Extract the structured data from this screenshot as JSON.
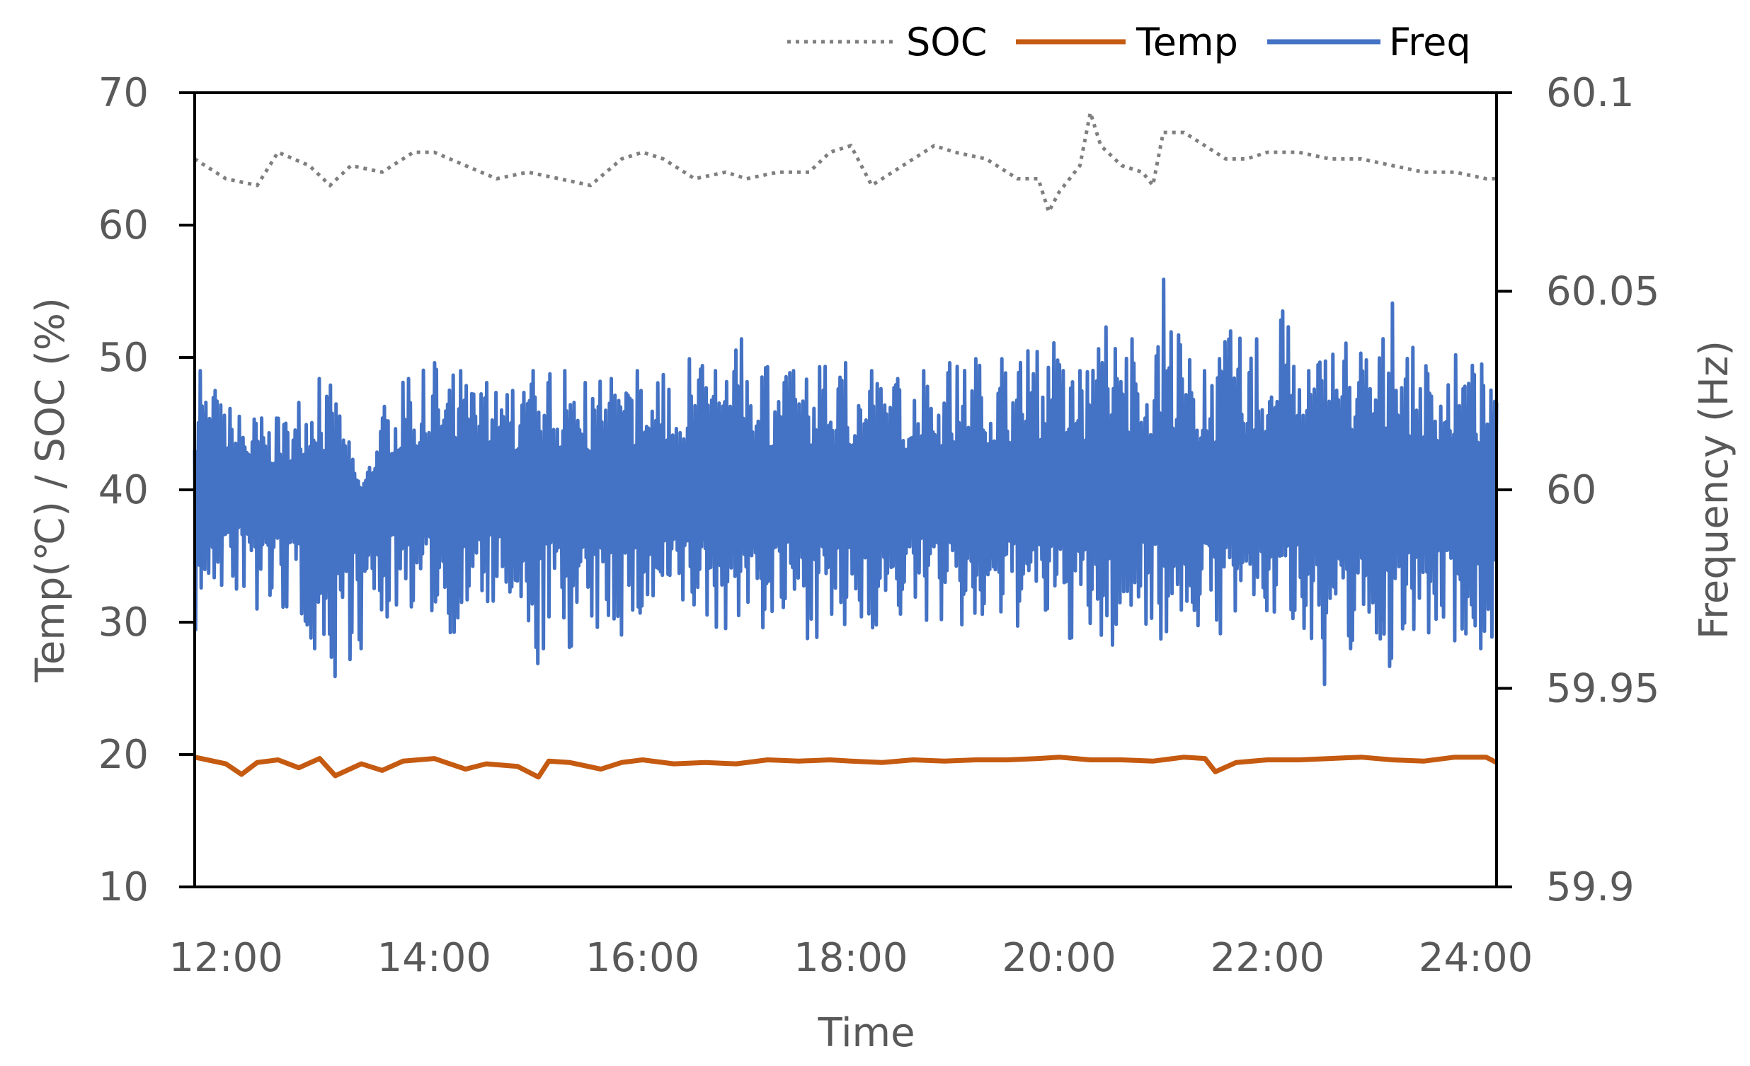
{
  "chart_data": {
    "type": "line",
    "xlabel": "Time",
    "ylabel_left": "Temp(℃) / SOC (%)",
    "ylabel_right": "Frequency (Hz)",
    "x_ticks": [
      "12:00",
      "14:00",
      "16:00",
      "18:00",
      "20:00",
      "22:00",
      "24:00"
    ],
    "x_range_hours": [
      11.7,
      24.2
    ],
    "y_left_ticks": [
      "70",
      "60",
      "50",
      "40",
      "30",
      "20",
      "10"
    ],
    "y_left_range": [
      10,
      70
    ],
    "y_right_ticks": [
      "60.1",
      "60.05",
      "60",
      "59.95",
      "59.9"
    ],
    "y_right_range": [
      59.9,
      60.1
    ],
    "legend": {
      "position": "top-right",
      "entries": [
        "SOC",
        "Temp",
        "Freq"
      ]
    },
    "grid": false,
    "series": [
      {
        "name": "SOC",
        "axis": "left",
        "style": "dotted",
        "color": "#7f7f7f",
        "x_hours": [
          11.7,
          12.0,
          12.3,
          12.5,
          12.8,
          13.0,
          13.2,
          13.5,
          13.8,
          14.0,
          14.3,
          14.6,
          14.9,
          15.2,
          15.5,
          15.8,
          16.0,
          16.2,
          16.5,
          16.8,
          17.0,
          17.3,
          17.6,
          17.8,
          18.0,
          18.2,
          18.5,
          18.8,
          19.0,
          19.3,
          19.6,
          19.8,
          19.9,
          20.0,
          20.2,
          20.3,
          20.4,
          20.6,
          20.8,
          20.9,
          21.0,
          21.2,
          21.4,
          21.6,
          21.8,
          22.0,
          22.3,
          22.6,
          22.9,
          23.2,
          23.5,
          23.8,
          24.1,
          24.2
        ],
        "values": [
          65,
          63.5,
          63,
          65.5,
          64.5,
          63,
          64.5,
          64,
          65.5,
          65.5,
          64.5,
          63.5,
          64,
          63.5,
          63,
          65,
          65.5,
          65,
          63.5,
          64,
          63.5,
          64,
          64,
          65.5,
          66,
          63,
          64.5,
          66,
          65.5,
          65,
          63.5,
          63.5,
          61,
          62.5,
          64.5,
          68.5,
          66,
          64.5,
          64,
          63,
          67,
          67,
          66,
          65,
          65,
          65.5,
          65.5,
          65,
          65,
          64.5,
          64,
          64,
          63.5,
          63.5
        ]
      },
      {
        "name": "Temp",
        "axis": "left",
        "style": "solid",
        "color": "#c55a11",
        "x_hours": [
          11.7,
          12.0,
          12.15,
          12.3,
          12.5,
          12.7,
          12.9,
          13.05,
          13.3,
          13.5,
          13.7,
          14.0,
          14.3,
          14.5,
          14.8,
          15.0,
          15.1,
          15.3,
          15.6,
          15.8,
          16.0,
          16.3,
          16.6,
          16.9,
          17.2,
          17.5,
          17.8,
          18.0,
          18.3,
          18.6,
          18.9,
          19.2,
          19.5,
          19.8,
          20.0,
          20.3,
          20.6,
          20.9,
          21.2,
          21.4,
          21.5,
          21.7,
          22.0,
          22.3,
          22.6,
          22.9,
          23.2,
          23.5,
          23.8,
          24.1,
          24.2
        ],
        "values": [
          19.8,
          19.3,
          18.5,
          19.4,
          19.6,
          19,
          19.7,
          18.4,
          19.3,
          18.8,
          19.5,
          19.7,
          18.9,
          19.3,
          19.1,
          18.3,
          19.5,
          19.4,
          18.9,
          19.4,
          19.6,
          19.3,
          19.4,
          19.3,
          19.6,
          19.5,
          19.6,
          19.5,
          19.4,
          19.6,
          19.5,
          19.6,
          19.6,
          19.7,
          19.8,
          19.6,
          19.6,
          19.5,
          19.8,
          19.7,
          18.7,
          19.4,
          19.6,
          19.6,
          19.7,
          19.8,
          19.6,
          19.5,
          19.8,
          19.8,
          19.4
        ]
      },
      {
        "name": "Freq",
        "axis": "right",
        "style": "solid",
        "color": "#4472c4",
        "x_hours": [
          11.7,
          11.75,
          11.9,
          12.1,
          12.3,
          12.5,
          12.7,
          12.85,
          12.9,
          13.05,
          13.3,
          13.55,
          13.75,
          14.0,
          14.25,
          14.5,
          14.75,
          14.95,
          15.05,
          15.1,
          15.25,
          15.45,
          15.7,
          15.95,
          16.2,
          16.45,
          16.7,
          16.95,
          17.2,
          17.45,
          17.7,
          17.95,
          18.2,
          18.45,
          18.7,
          18.95,
          19.2,
          19.45,
          19.7,
          19.95,
          20.2,
          20.45,
          20.7,
          20.95,
          21.0,
          21.15,
          21.4,
          21.65,
          21.9,
          22.15,
          22.4,
          22.55,
          22.8,
          23.05,
          23.2,
          23.3,
          23.55,
          23.8,
          24.05,
          24.2
        ],
        "peaks_hz": [
          60.01,
          60.03,
          60.025,
          60.021,
          60.02,
          60.018,
          60.022,
          60.032,
          60.028,
          60.026,
          60.0,
          60.025,
          60.028,
          60.032,
          60.03,
          60.027,
          60.025,
          60.03,
          60.018,
          60.031,
          60.03,
          60.027,
          60.028,
          60.03,
          60.029,
          60.033,
          60.03,
          60.038,
          60.031,
          60.03,
          60.031,
          60.032,
          60.03,
          60.028,
          60.03,
          60.032,
          60.033,
          60.033,
          60.035,
          60.037,
          60.03,
          60.041,
          60.038,
          60.036,
          60.053,
          60.039,
          60.03,
          60.04,
          60.038,
          60.045,
          60.03,
          60.04,
          60.042,
          60.036,
          60.047,
          60.037,
          60.034,
          60.035,
          60.033,
          60.022
        ],
        "troughs_hz": [
          59.96,
          59.965,
          59.972,
          59.975,
          59.97,
          59.968,
          59.965,
          59.96,
          59.962,
          59.953,
          59.96,
          59.968,
          59.97,
          59.966,
          59.962,
          59.969,
          59.965,
          59.943,
          59.96,
          59.968,
          59.958,
          59.96,
          59.962,
          59.962,
          59.965,
          59.966,
          59.963,
          59.966,
          59.962,
          59.963,
          59.962,
          59.958,
          59.964,
          59.965,
          59.966,
          59.964,
          59.96,
          59.963,
          59.965,
          59.962,
          59.96,
          59.955,
          59.965,
          59.966,
          59.958,
          59.966,
          59.962,
          59.963,
          59.966,
          59.965,
          59.964,
          59.951,
          59.96,
          59.964,
          59.948,
          59.965,
          59.964,
          59.962,
          59.96,
          59.963
        ],
        "center_hz": 60.0
      }
    ]
  }
}
